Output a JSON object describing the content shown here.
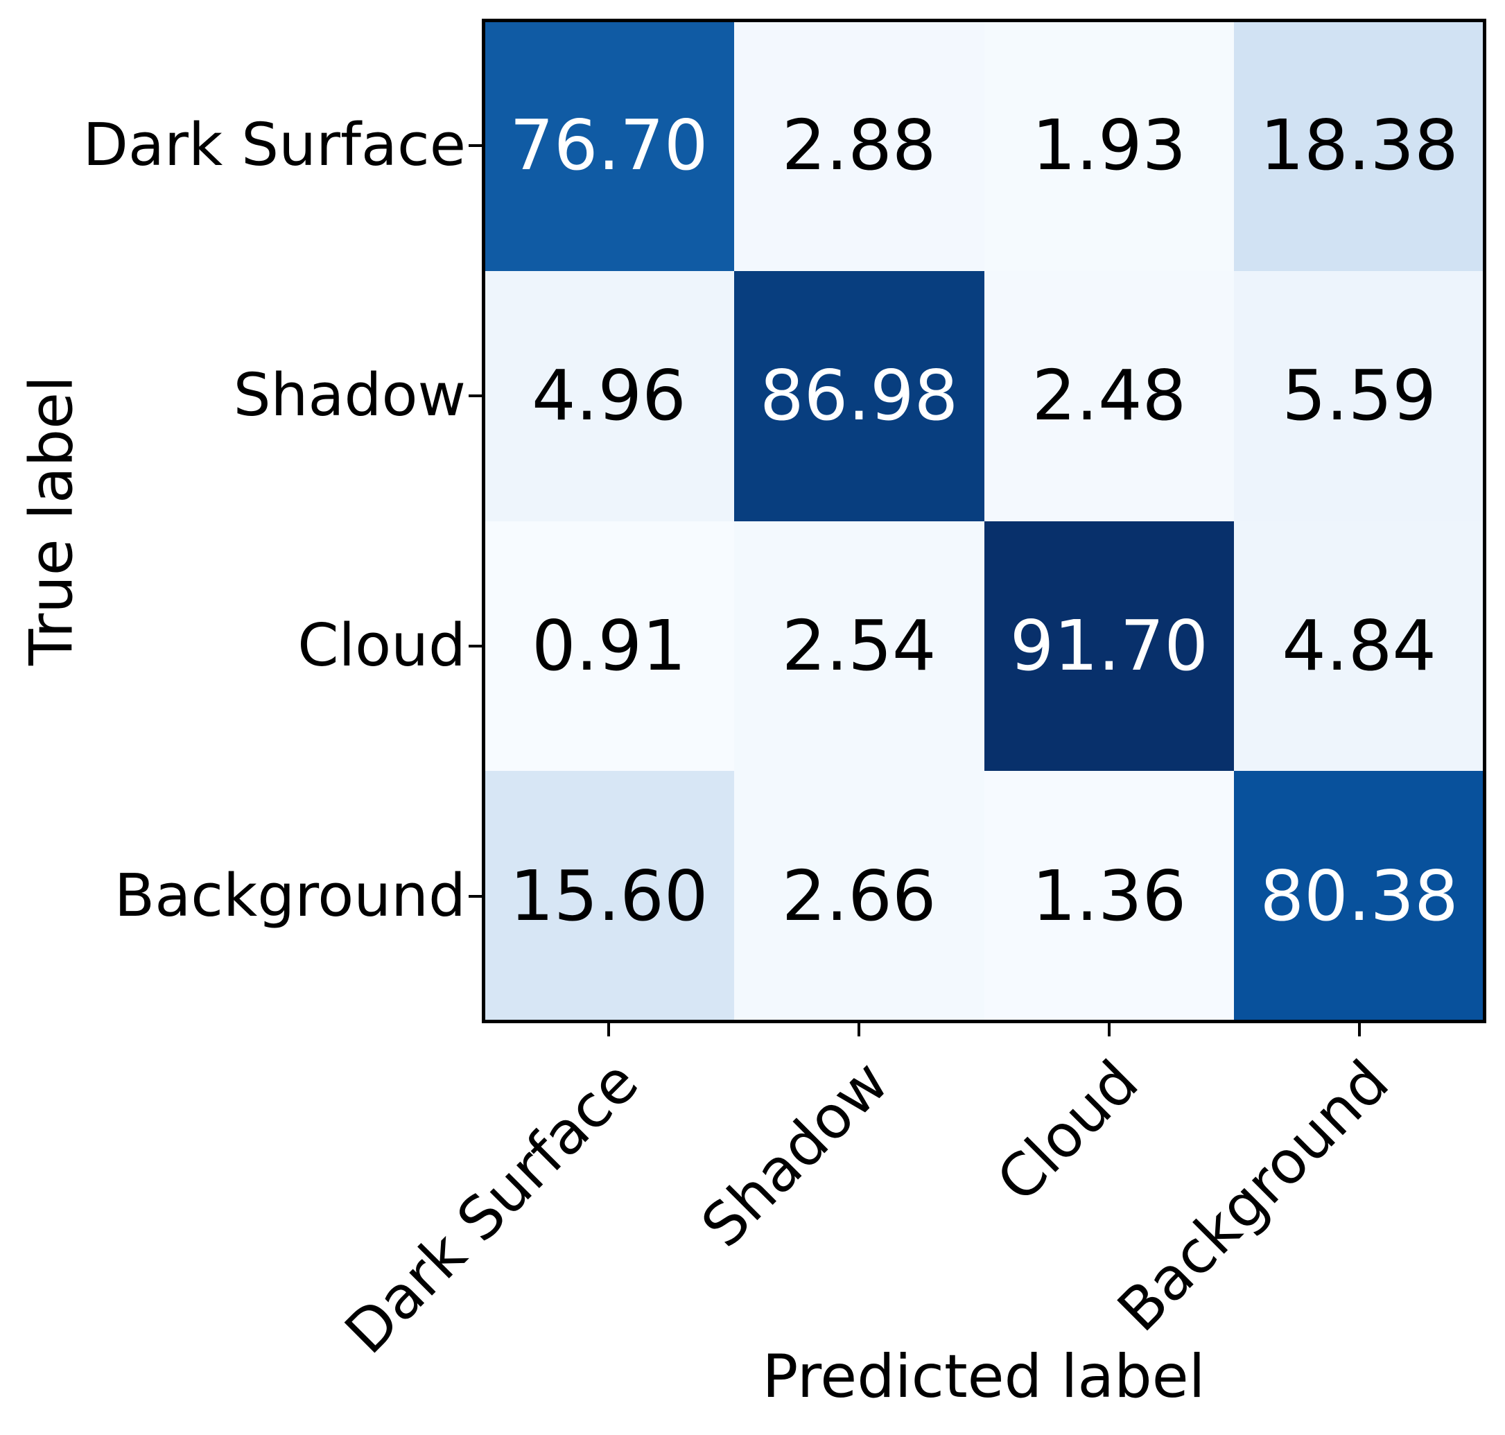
{
  "chart_data": {
    "type": "heatmap",
    "subtype": "confusion-matrix",
    "title": "",
    "xlabel": "Predicted label",
    "ylabel": "True label",
    "categories": [
      "Dark Surface",
      "Shadow",
      "Cloud",
      "Background"
    ],
    "matrix": [
      [
        76.7,
        2.88,
        1.93,
        18.38
      ],
      [
        4.96,
        86.98,
        2.48,
        5.59
      ],
      [
        0.91,
        2.54,
        91.7,
        4.84
      ],
      [
        15.6,
        2.66,
        1.36,
        80.38
      ]
    ],
    "value_decimals": 2,
    "colormap": "Blues",
    "colormap_stops": [
      [
        0.0,
        0.9686,
        0.9843,
        1.0
      ],
      [
        0.125,
        0.8706,
        0.9216,
        0.9686
      ],
      [
        0.25,
        0.7765,
        0.8588,
        0.9373
      ],
      [
        0.375,
        0.6196,
        0.7922,
        0.8824
      ],
      [
        0.5,
        0.4196,
        0.6824,
        0.8392
      ],
      [
        0.625,
        0.2588,
        0.5725,
        0.7765
      ],
      [
        0.75,
        0.1294,
        0.4431,
        0.7098
      ],
      [
        0.875,
        0.0314,
        0.3176,
        0.6118
      ],
      [
        1.0,
        0.0314,
        0.1882,
        0.4196
      ]
    ],
    "cell_text_color_light_bg": "#000000",
    "cell_text_color_dark_bg": "#ffffff",
    "axis_color": "#000000",
    "grid": false,
    "legend": "none",
    "colorbar": false
  }
}
